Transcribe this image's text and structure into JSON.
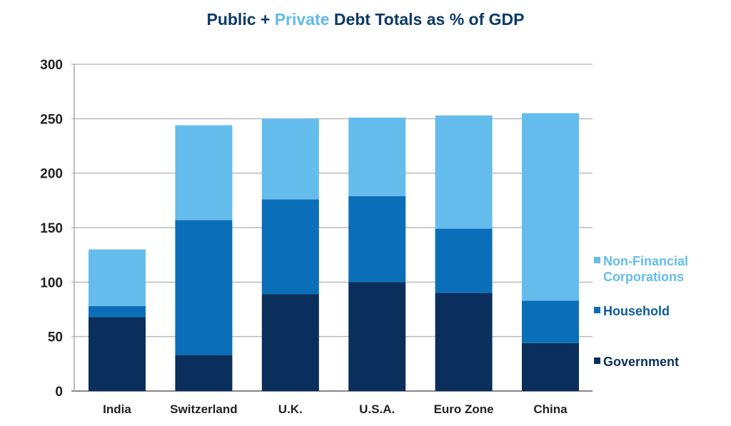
{
  "title": {
    "part1": "Public + ",
    "part2": "Private",
    "part3": " Debt Totals as % of GDP"
  },
  "chart_data": {
    "type": "bar",
    "stacked": true,
    "title": "Public + Private Debt Totals as % of GDP",
    "xlabel": "",
    "ylabel": "",
    "ylim": [
      0,
      300
    ],
    "yticks": [
      0,
      50,
      100,
      150,
      200,
      250,
      300
    ],
    "grid": true,
    "legend_position": "right",
    "categories": [
      "India",
      "Switzerland",
      "U.K.",
      "U.S.A.",
      "Euro Zone",
      "China"
    ],
    "series": [
      {
        "name": "Government",
        "color": "#0a2f5c",
        "values": [
          68,
          33,
          89,
          100,
          90,
          44
        ]
      },
      {
        "name": "Household",
        "color": "#0a6fb8",
        "values": [
          10,
          124,
          87,
          79,
          59,
          39
        ]
      },
      {
        "name": "Non-Financial Corporations",
        "color": "#64bdec",
        "values": [
          52,
          87,
          74,
          72,
          104,
          172
        ]
      }
    ],
    "legend_text_colors": [
      "#0a2f5c",
      "#0d5a9a",
      "#64bdec"
    ]
  }
}
